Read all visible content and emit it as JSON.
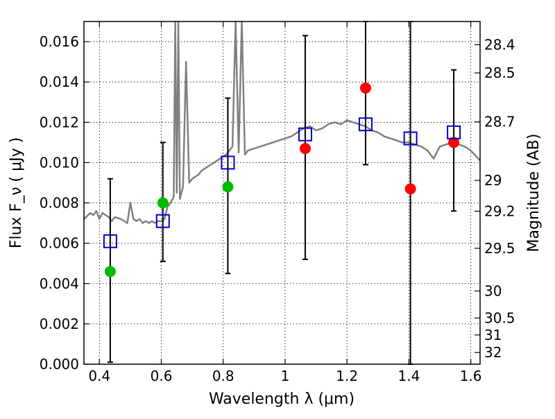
{
  "chart_data": {
    "type": "scatter",
    "xlabel": "Wavelength  λ (μm)",
    "ylabel": "Flux  F_ν  ( μJy )",
    "ylabel_right": "Magnitude (AB)",
    "xlim": [
      0.35,
      1.63
    ],
    "ylim": [
      0.0,
      0.017
    ],
    "grid": true,
    "x_ticks": [
      0.4,
      0.6,
      0.8,
      1.0,
      1.2,
      1.4,
      1.6
    ],
    "x_tick_labels": [
      "0.4",
      "0.6",
      "0.8",
      "1",
      "1.2",
      "1.4",
      "1.6"
    ],
    "y_ticks": [
      0.0,
      0.002,
      0.004,
      0.006,
      0.008,
      0.01,
      0.012,
      0.014,
      0.016
    ],
    "y_tick_labels": [
      "0.000",
      "0.002",
      "0.004",
      "0.006",
      "0.008",
      "0.010",
      "0.012",
      "0.014",
      "0.016"
    ],
    "right_ticks": [
      {
        "label": "28.4",
        "flux": 0.01585
      },
      {
        "label": "28.5",
        "flux": 0.01445
      },
      {
        "label": "28.7",
        "flux": 0.01202
      },
      {
        "label": "29",
        "flux": 0.00912
      },
      {
        "label": "29.2",
        "flux": 0.00759
      },
      {
        "label": "29.5",
        "flux": 0.00575
      },
      {
        "label": "30",
        "flux": 0.00363
      },
      {
        "label": "30.5",
        "flux": 0.00229
      },
      {
        "label": "31",
        "flux": 0.00145
      },
      {
        "label": "32",
        "flux": 0.00058
      }
    ],
    "series": [
      {
        "marker": "circle",
        "color": "#00bb00",
        "x": [
          0.435,
          0.605,
          0.815
        ],
        "y": [
          0.0046,
          0.008,
          0.0088
        ]
      },
      {
        "marker": "circle",
        "color": "#ff0000",
        "x": [
          1.065,
          1.26,
          1.405,
          1.545
        ],
        "y": [
          0.0107,
          0.0137,
          0.0087,
          0.011
        ]
      },
      {
        "marker": "open-square",
        "color": "#0000cc",
        "x": [
          0.435,
          0.605,
          0.815,
          1.065,
          1.26,
          1.405,
          1.545
        ],
        "y": [
          0.0061,
          0.0071,
          0.01,
          0.0114,
          0.0119,
          0.0112,
          0.0115
        ]
      }
    ],
    "error_bars": [
      {
        "x": 0.435,
        "low": 0.0001,
        "high": 0.0092
      },
      {
        "x": 0.605,
        "low": 0.0051,
        "high": 0.011
      },
      {
        "x": 0.815,
        "low": 0.0045,
        "high": 0.0132
      },
      {
        "x": 1.065,
        "low": 0.0052,
        "high": 0.0163
      },
      {
        "x": 1.26,
        "low": 0.0099,
        "high": 0.017
      },
      {
        "x": 1.405,
        "low": 0.0,
        "high": 0.017
      },
      {
        "x": 1.545,
        "low": 0.0076,
        "high": 0.0146
      }
    ],
    "spectrum": {
      "color": "#808080",
      "x": [
        0.35,
        0.37,
        0.38,
        0.39,
        0.4,
        0.41,
        0.42,
        0.43,
        0.44,
        0.45,
        0.47,
        0.49,
        0.5,
        0.51,
        0.52,
        0.53,
        0.54,
        0.55,
        0.56,
        0.57,
        0.58,
        0.59,
        0.6,
        0.61,
        0.62,
        0.63,
        0.64,
        0.645,
        0.65,
        0.655,
        0.66,
        0.67,
        0.68,
        0.69,
        0.7,
        0.71,
        0.72,
        0.73,
        0.74,
        0.75,
        0.76,
        0.77,
        0.78,
        0.79,
        0.8,
        0.81,
        0.82,
        0.83,
        0.84,
        0.85,
        0.86,
        0.87,
        0.88,
        0.9,
        0.92,
        0.94,
        0.96,
        0.98,
        1.0,
        1.02,
        1.04,
        1.06,
        1.08,
        1.1,
        1.12,
        1.14,
        1.16,
        1.18,
        1.2,
        1.22,
        1.24,
        1.26,
        1.28,
        1.3,
        1.32,
        1.34,
        1.36,
        1.38,
        1.4,
        1.42,
        1.44,
        1.46,
        1.48,
        1.5,
        1.52,
        1.54,
        1.56,
        1.58,
        1.6,
        1.63
      ],
      "y": [
        0.0072,
        0.0075,
        0.0074,
        0.0076,
        0.0072,
        0.0075,
        0.0074,
        0.0073,
        0.0071,
        0.0073,
        0.0072,
        0.007,
        0.008,
        0.0072,
        0.0071,
        0.0072,
        0.007,
        0.0071,
        0.007,
        0.0071,
        0.007,
        0.0071,
        0.0071,
        0.0072,
        0.0078,
        0.008,
        0.0083,
        0.017,
        0.0085,
        0.017,
        0.0082,
        0.0088,
        0.015,
        0.009,
        0.0092,
        0.0093,
        0.0094,
        0.0096,
        0.0097,
        0.0098,
        0.0099,
        0.01,
        0.0101,
        0.0102,
        0.0103,
        0.0104,
        0.0106,
        0.0108,
        0.017,
        0.0105,
        0.017,
        0.0104,
        0.0106,
        0.0107,
        0.0108,
        0.0109,
        0.011,
        0.0111,
        0.0112,
        0.0113,
        0.0115,
        0.0117,
        0.0118,
        0.0116,
        0.0117,
        0.0119,
        0.012,
        0.0119,
        0.0121,
        0.012,
        0.0119,
        0.0118,
        0.0116,
        0.0115,
        0.0113,
        0.0112,
        0.0111,
        0.011,
        0.011,
        0.0109,
        0.0108,
        0.0106,
        0.0102,
        0.0108,
        0.0109,
        0.011,
        0.0109,
        0.0108,
        0.0106,
        0.0101
      ]
    }
  }
}
